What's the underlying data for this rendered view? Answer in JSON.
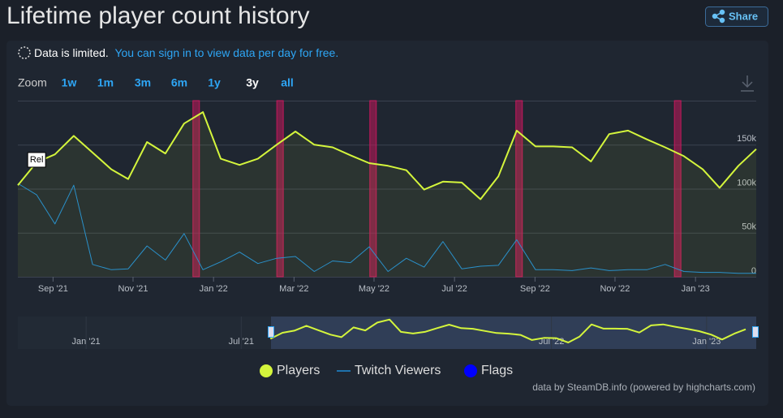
{
  "header": {
    "title": "Lifetime player count history",
    "share": "Share"
  },
  "notice": {
    "text": "Data is limited.",
    "link": "You can sign in to view data per day for free."
  },
  "zoom": {
    "label": "Zoom",
    "buttons": [
      "1w",
      "1m",
      "3m",
      "6m",
      "1y",
      "3y",
      "all"
    ],
    "active": "3y"
  },
  "chart_data": {
    "type": "line",
    "xlim": [
      2021.594,
      2023.126
    ],
    "xticks": [
      {
        "value": 2021.667,
        "label": "Sep '21"
      },
      {
        "value": 2021.833,
        "label": "Nov '21"
      },
      {
        "value": 2022.0,
        "label": "Jan '22"
      },
      {
        "value": 2022.167,
        "label": "Mar '22"
      },
      {
        "value": 2022.333,
        "label": "May '22"
      },
      {
        "value": 2022.5,
        "label": "Jul '22"
      },
      {
        "value": 2022.667,
        "label": "Sep '22"
      },
      {
        "value": 2022.833,
        "label": "Nov '22"
      },
      {
        "value": 2023.0,
        "label": "Jan '23"
      }
    ],
    "ylim": [
      0,
      200000
    ],
    "yticks": [
      0,
      {
        "value": 50000,
        "label": "50k"
      },
      {
        "value": 100000,
        "label": "100k"
      },
      {
        "value": 150000,
        "label": "150k"
      }
    ],
    "grid": true,
    "x": [
      2021.594,
      2021.633,
      2021.671,
      2021.71,
      2021.749,
      2021.788,
      2021.823,
      2021.862,
      2021.9,
      2021.939,
      2021.978,
      2022.015,
      2022.054,
      2022.092,
      2022.131,
      2022.17,
      2022.209,
      2022.247,
      2022.284,
      2022.323,
      2022.362,
      2022.4,
      2022.437,
      2022.476,
      2022.515,
      2022.554,
      2022.591,
      2022.629,
      2022.668,
      2022.705,
      2022.744,
      2022.783,
      2022.821,
      2022.86,
      2022.899,
      2022.937,
      2022.976,
      2023.015,
      2023.05,
      2023.089,
      2023.126
    ],
    "series": [
      {
        "name": "Players",
        "color": "#d4f53c",
        "area": true,
        "values": [
          104000,
          130000,
          139000,
          160000,
          141000,
          122000,
          111000,
          153000,
          140000,
          174000,
          187000,
          134000,
          127000,
          134000,
          150000,
          165000,
          150000,
          147000,
          138000,
          129000,
          126000,
          121000,
          99000,
          108000,
          107000,
          88000,
          114000,
          166000,
          148000,
          148000,
          147000,
          131000,
          162000,
          166000,
          156000,
          147000,
          137000,
          122000,
          101000,
          126000,
          145000
        ]
      },
      {
        "name": "Twitch Viewers",
        "color": "#1e8ad6",
        "values": [
          106000,
          93000,
          60000,
          104000,
          14000,
          8000,
          9000,
          35000,
          19000,
          49000,
          8000,
          17000,
          28000,
          15000,
          21000,
          23000,
          6000,
          18000,
          16000,
          34000,
          6000,
          21000,
          11000,
          40000,
          9000,
          12000,
          13000,
          42000,
          8000,
          8000,
          7000,
          10000,
          7000,
          8000,
          8000,
          14000,
          6000,
          5000,
          5000,
          4000,
          4000
        ]
      }
    ],
    "flags": {
      "name": "Flags",
      "color": "#0000ff",
      "band_color": "#c2185b",
      "x": [
        2021.964,
        2022.138,
        2022.331,
        2022.634,
        2022.963
      ]
    },
    "annotation": "Rel"
  },
  "navigator": {
    "xlim": [
      2020.78,
      2023.16
    ],
    "ylim": [
      60000,
      200000
    ],
    "xticks": [
      {
        "value": 2021.0,
        "label": "Jan '21"
      },
      {
        "value": 2021.5,
        "label": "Jul '21"
      },
      {
        "value": 2022.5,
        "label": "Jul '22"
      },
      {
        "value": 2023.0,
        "label": "Jan '23"
      }
    ]
  },
  "credit": "data by SteamDB.info (powered by highcharts.com)"
}
